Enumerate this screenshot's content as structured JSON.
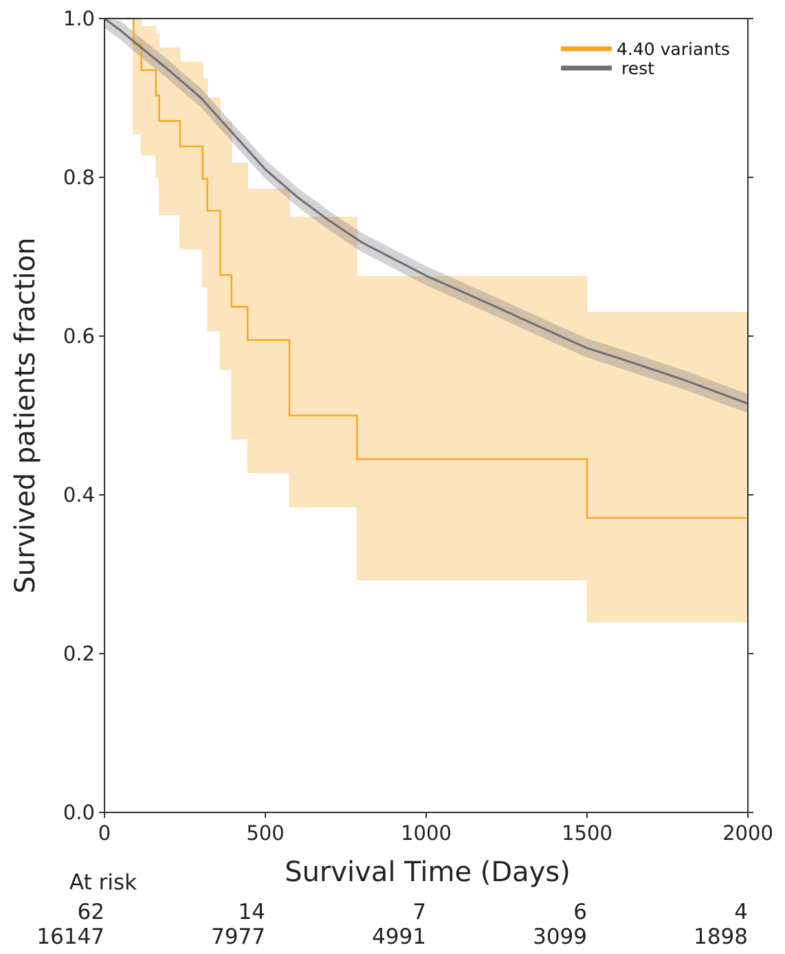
{
  "chart_data": {
    "type": "line",
    "title": "",
    "xlabel": "Survival Time (Days)",
    "ylabel": "Survived patients fraction",
    "xlim": [
      0,
      2000
    ],
    "ylim": [
      0,
      1.0
    ],
    "x_ticks": [
      0,
      500,
      1000,
      1500,
      2000
    ],
    "y_ticks": [
      0.0,
      0.2,
      0.4,
      0.6,
      0.8,
      1.0
    ],
    "y_tick_labels": [
      "0.0",
      "0.2",
      "0.4",
      "0.6",
      "0.8",
      "1.0"
    ],
    "grid": false,
    "legend_position": "top-right",
    "series": [
      {
        "name": "4.40 variants",
        "color": "#F5A623",
        "style": "step",
        "x": [
          0,
          80,
          90,
          115,
          160,
          170,
          235,
          305,
          320,
          360,
          395,
          445,
          575,
          785,
          1500,
          2000
        ],
        "y": [
          1.0,
          1.0,
          0.968,
          0.935,
          0.903,
          0.871,
          0.839,
          0.798,
          0.758,
          0.677,
          0.637,
          0.595,
          0.5,
          0.445,
          0.371,
          0.371
        ],
        "ci_lower": [
          1.0,
          1.0,
          0.855,
          0.828,
          0.8,
          0.753,
          0.71,
          0.662,
          0.607,
          0.558,
          0.47,
          0.428,
          0.385,
          0.293,
          0.24,
          0.168
        ],
        "ci_upper": [
          1.0,
          1.0,
          1.0,
          0.99,
          0.98,
          0.963,
          0.945,
          0.924,
          0.9,
          0.87,
          0.818,
          0.785,
          0.75,
          0.675,
          0.63,
          0.575
        ]
      },
      {
        "name": "rest",
        "color": "#6E6E73",
        "style": "smooth",
        "x": [
          0,
          50,
          100,
          200,
          300,
          400,
          500,
          600,
          700,
          800,
          1000,
          1200,
          1400,
          1500,
          1600,
          1800,
          2000
        ],
        "y": [
          1.0,
          0.985,
          0.968,
          0.935,
          0.9,
          0.855,
          0.81,
          0.775,
          0.745,
          0.718,
          0.676,
          0.64,
          0.603,
          0.585,
          0.572,
          0.545,
          0.515
        ],
        "ci_band": 0.012
      }
    ],
    "at_risk": {
      "label": "At risk",
      "x": [
        0,
        500,
        1000,
        1500,
        2000
      ],
      "rows": [
        {
          "series": "4.40 variants",
          "values": [
            "62",
            "14",
            "7",
            "6",
            "4"
          ]
        },
        {
          "series": "rest",
          "values": [
            "16147",
            "7977",
            "4991",
            "3099",
            "1898"
          ]
        }
      ]
    }
  }
}
